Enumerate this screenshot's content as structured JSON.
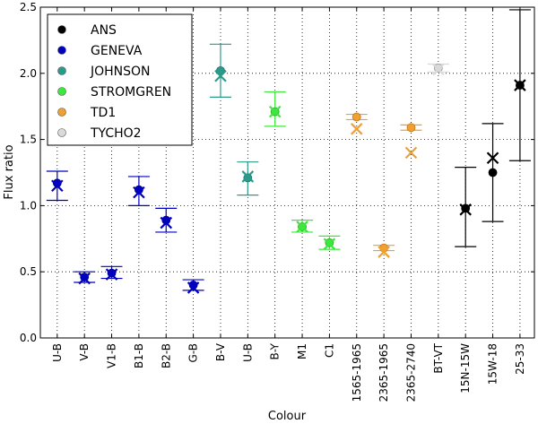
{
  "chart_data": {
    "type": "scatter",
    "title": "",
    "xlabel": "Colour",
    "ylabel": "Flux ratio",
    "ylim": [
      0.0,
      2.5
    ],
    "yticks": [
      "0.0",
      "0.5",
      "1.0",
      "1.5",
      "2.0",
      "2.5"
    ],
    "grid": "vertical dotted lines at each category; horizontal dotted lines at 0.5, 1.0, 1.5, 2.0",
    "categories": [
      "U-B",
      "V-B",
      "V1-B",
      "B1-B",
      "B2-B",
      "G-B",
      "B-V",
      "U-B",
      "B-Y",
      "M1",
      "C1",
      "1565-1965",
      "2365-1965",
      "2365-2740",
      "BT-VT",
      "15N-15W",
      "15W-18",
      "25-33"
    ],
    "legend": {
      "position": "top-left",
      "entries": [
        {
          "label": "ANS",
          "color": "#000000"
        },
        {
          "label": "GENEVA",
          "color": "#0000bf"
        },
        {
          "label": "JOHNSON",
          "color": "#2a9a8a"
        },
        {
          "label": "STROMGREN",
          "color": "#3be83b"
        },
        {
          "label": "TD1",
          "color": "#f0a030"
        },
        {
          "label": "TYCHO2",
          "color": "#d9d9d9"
        }
      ]
    },
    "series": [
      {
        "name": "GENEVA",
        "color": "#0000bf",
        "edge": "#00008b",
        "points": [
          {
            "x": 0,
            "observed": 1.17,
            "err_low": 1.04,
            "err_high": 1.26,
            "model": 1.15
          },
          {
            "x": 1,
            "observed": 0.46,
            "err_low": 0.42,
            "err_high": 0.5,
            "model": 0.45
          },
          {
            "x": 2,
            "observed": 0.49,
            "err_low": 0.45,
            "err_high": 0.54,
            "model": 0.48
          },
          {
            "x": 3,
            "observed": 1.12,
            "err_low": 1.0,
            "err_high": 1.22,
            "model": 1.1
          },
          {
            "x": 4,
            "observed": 0.89,
            "err_low": 0.8,
            "err_high": 0.98,
            "model": 0.87
          },
          {
            "x": 5,
            "observed": 0.4,
            "err_low": 0.36,
            "err_high": 0.44,
            "model": 0.38
          }
        ]
      },
      {
        "name": "JOHNSON",
        "color": "#2a9a8a",
        "edge": "#1e6e62",
        "points": [
          {
            "x": 6,
            "observed": 2.02,
            "err_low": 1.82,
            "err_high": 2.22,
            "model": 1.98
          },
          {
            "x": 7,
            "observed": 1.21,
            "err_low": 1.08,
            "err_high": 1.33,
            "model": 1.22
          }
        ]
      },
      {
        "name": "STROMGREN",
        "color": "#3be83b",
        "edge": "#2aa02a",
        "points": [
          {
            "x": 8,
            "observed": 1.71,
            "err_low": 1.6,
            "err_high": 1.86,
            "model": 1.71
          },
          {
            "x": 9,
            "observed": 0.84,
            "err_low": 0.8,
            "err_high": 0.89,
            "model": 0.84
          },
          {
            "x": 10,
            "observed": 0.72,
            "err_low": 0.67,
            "err_high": 0.77,
            "model": 0.71
          }
        ]
      },
      {
        "name": "TD1",
        "color": "#f0a030",
        "edge": "#c07818",
        "points": [
          {
            "x": 11,
            "observed": 1.67,
            "err_low": 1.65,
            "err_high": 1.69,
            "model": 1.58
          },
          {
            "x": 12,
            "observed": 0.68,
            "err_low": 0.66,
            "err_high": 0.7,
            "model": 0.65
          },
          {
            "x": 13,
            "observed": 1.59,
            "err_low": 1.57,
            "err_high": 1.61,
            "model": 1.4
          }
        ]
      },
      {
        "name": "TYCHO2",
        "color": "#d9d9d9",
        "edge": "#999999",
        "points": [
          {
            "x": 14,
            "observed": 2.04,
            "err_low": 2.01,
            "err_high": 2.07,
            "model": 2.03
          }
        ]
      },
      {
        "name": "ANS",
        "color": "#000000",
        "edge": "#000000",
        "points": [
          {
            "x": 15,
            "observed": 0.98,
            "err_low": 0.69,
            "err_high": 1.29,
            "model": 0.97
          },
          {
            "x": 16,
            "observed": 1.25,
            "err_low": 0.88,
            "err_high": 1.62,
            "model": 1.36
          },
          {
            "x": 17,
            "observed": 1.91,
            "err_low": 1.34,
            "err_high": 2.48,
            "model": 1.91
          }
        ]
      }
    ]
  }
}
